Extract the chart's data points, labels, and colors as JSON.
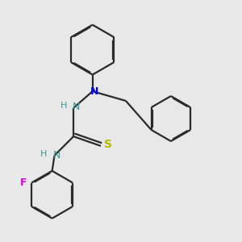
{
  "background_color": "#e8e8e8",
  "bond_color": "#2a2a2a",
  "N_color": "#0000ff",
  "NH_color": "#3a9999",
  "S_color": "#b8b800",
  "F_color": "#dd00dd",
  "line_width": 1.6,
  "fig_size": [
    3.0,
    3.0
  ],
  "dpi": 100,
  "xlim": [
    0,
    10
  ],
  "ylim": [
    0,
    10
  ]
}
